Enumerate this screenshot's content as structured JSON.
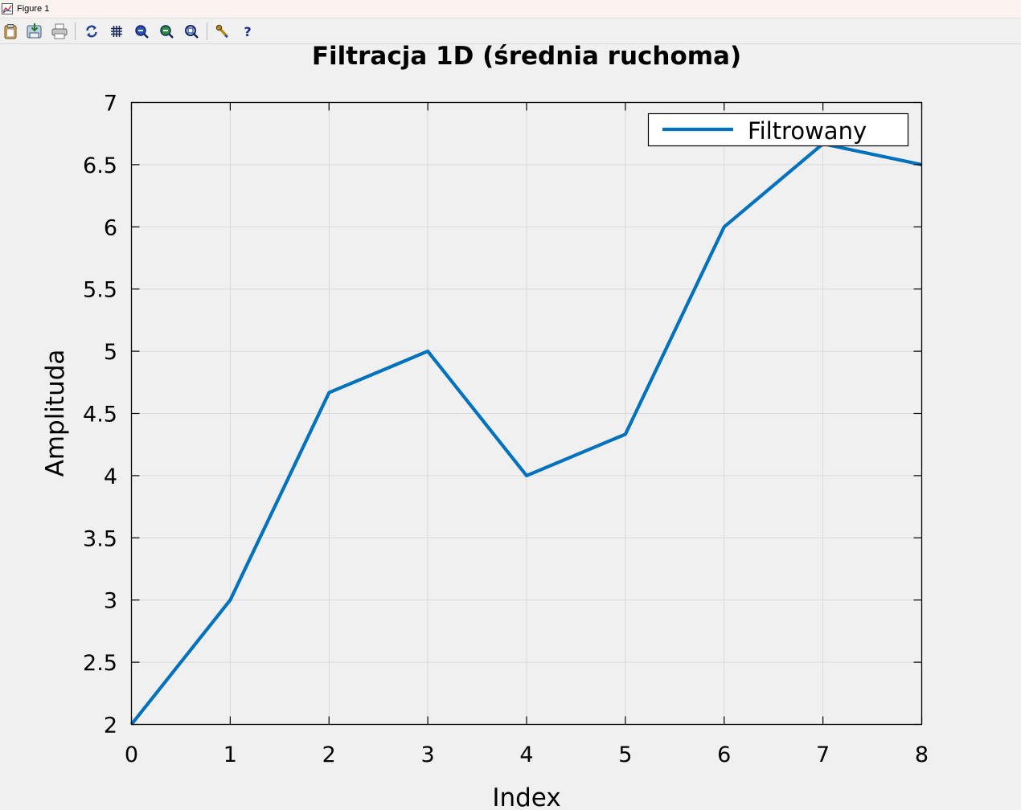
{
  "window": {
    "title": "Figure 1"
  },
  "toolbar": {
    "buttons": [
      {
        "name": "copy-figure-icon"
      },
      {
        "name": "save-figure-icon"
      },
      {
        "name": "print-figure-icon"
      },
      {
        "name": "refresh-icon"
      },
      {
        "name": "grid-toggle-icon"
      },
      {
        "name": "zoom-in-icon"
      },
      {
        "name": "zoom-out-icon"
      },
      {
        "name": "autoscale-icon"
      },
      {
        "name": "properties-wrench-icon"
      },
      {
        "name": "help-icon"
      }
    ]
  },
  "chart_data": {
    "type": "line",
    "title": "Filtracja 1D (średnia ruchoma)",
    "xlabel": "Index",
    "ylabel": "Amplituda",
    "xlim": [
      0,
      8
    ],
    "ylim": [
      2,
      7
    ],
    "xticks": [
      "0",
      "1",
      "2",
      "3",
      "4",
      "5",
      "6",
      "7",
      "8"
    ],
    "yticks": [
      "2",
      "2.5",
      "3",
      "3.5",
      "4",
      "4.5",
      "5",
      "5.5",
      "6",
      "6.5",
      "7"
    ],
    "grid": true,
    "legend_position": "top-right",
    "series": [
      {
        "name": "Filtrowany",
        "color": "#0072bd",
        "x": [
          0,
          1,
          2,
          3,
          4,
          5,
          6,
          7,
          8
        ],
        "y": [
          2,
          3,
          4.667,
          5,
          4,
          4.333,
          6,
          6.667,
          6.5
        ]
      }
    ]
  }
}
